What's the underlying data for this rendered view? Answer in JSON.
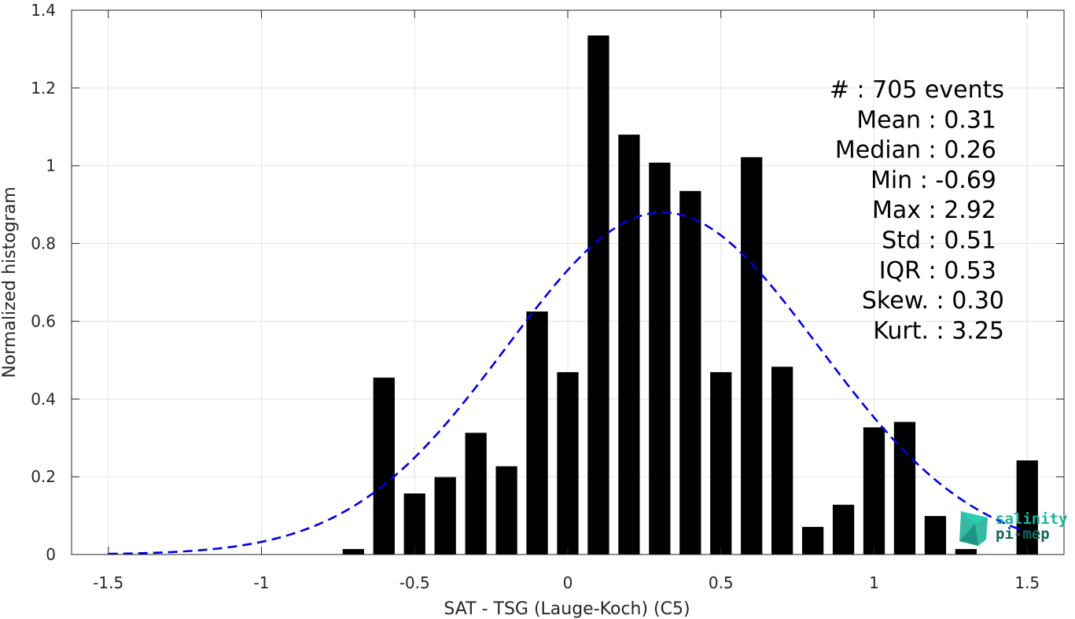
{
  "chart_data": {
    "type": "bar",
    "xlabel": "SAT - TSG (Lauge-Koch) (C5)",
    "ylabel": "Normalized histogram",
    "xlim": [
      -1.62,
      1.62
    ],
    "ylim": [
      0,
      1.4
    ],
    "x_ticks": [
      -1.5,
      -1,
      -0.5,
      0,
      0.5,
      1,
      1.5
    ],
    "x_tick_labels": [
      "-1.5",
      "-1",
      "-0.5",
      "0",
      "0.5",
      "1",
      "1.5"
    ],
    "y_ticks": [
      0,
      0.2,
      0.4,
      0.6,
      0.8,
      1,
      1.2,
      1.4
    ],
    "y_tick_labels": [
      "0",
      "0.2",
      "0.4",
      "0.6",
      "0.8",
      "1",
      "1.2",
      "1.4"
    ],
    "grid": true,
    "bar_width": 0.07,
    "bar_color": "#000000",
    "bars": {
      "x": [
        -0.7,
        -0.6,
        -0.5,
        -0.4,
        -0.3,
        -0.2,
        -0.1,
        0.0,
        0.1,
        0.2,
        0.3,
        0.4,
        0.5,
        0.6,
        0.7,
        0.8,
        0.9,
        1.0,
        1.1,
        1.2,
        1.3,
        1.5
      ],
      "values": [
        0.014,
        0.455,
        0.157,
        0.199,
        0.313,
        0.227,
        0.625,
        0.469,
        1.335,
        1.08,
        1.008,
        0.935,
        0.469,
        1.022,
        0.483,
        0.071,
        0.128,
        0.327,
        0.341,
        0.099,
        0.014,
        0.242
      ]
    },
    "fit_curve": {
      "type": "normal",
      "mean": 0.31,
      "std": 0.51,
      "peak": 0.88,
      "x_range": [
        -1.5,
        1.5
      ],
      "color": "#0000dd",
      "style": "dashed"
    },
    "stats": [
      {
        "label": "#",
        "sep": ":",
        "value": "705 events"
      },
      {
        "label": "Mean",
        "sep": ":",
        "value": "0.31"
      },
      {
        "label": "Median",
        "sep": ":",
        "value": "0.26"
      },
      {
        "label": "Min",
        "sep": ":",
        "value": "-0.69"
      },
      {
        "label": "Max",
        "sep": ":",
        "value": "2.92"
      },
      {
        "label": "Std",
        "sep": ":",
        "value": "0.51"
      },
      {
        "label": "IQR",
        "sep": ":",
        "value": "0.53"
      },
      {
        "label": "Skew.",
        "sep": ":",
        "value": "0.30"
      },
      {
        "label": "Kurt.",
        "sep": ":",
        "value": "3.25"
      }
    ]
  },
  "logo": {
    "line1": "salinity",
    "line2": "pi-mep",
    "color1": "#1fb39a",
    "color2": "#14665e"
  }
}
